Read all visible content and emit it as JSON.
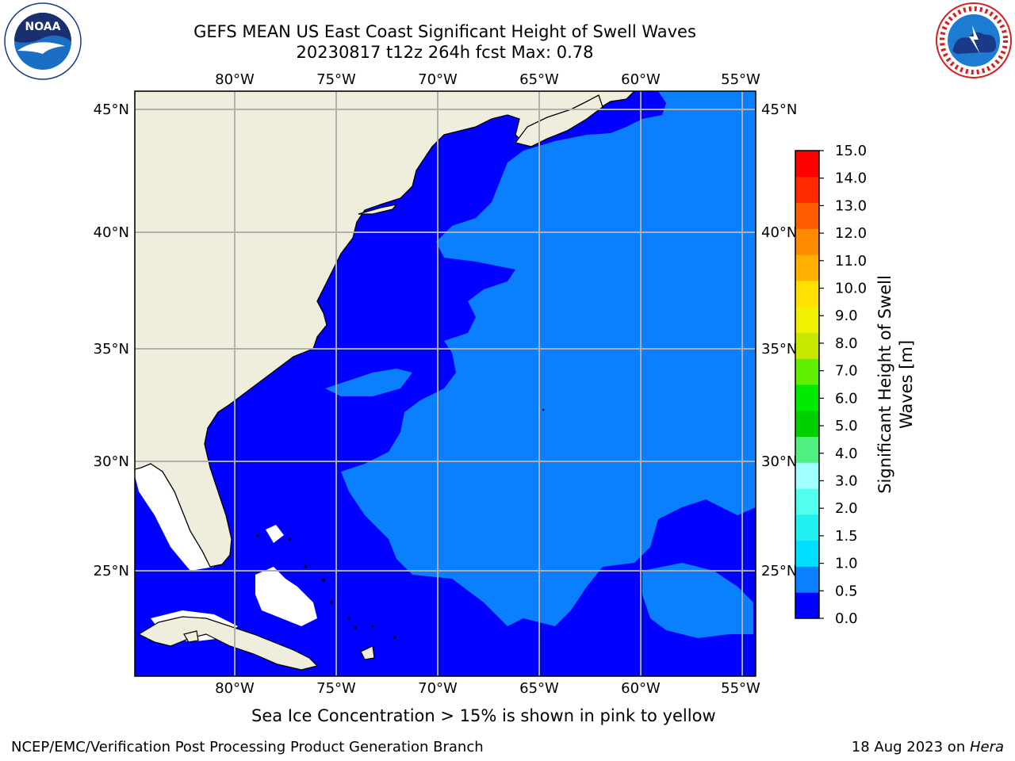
{
  "header": {
    "title_line1": "GEFS MEAN US East Coast Significant Height of Swell Waves",
    "title_line2": "20230817 t12z 264h fcst   Max: 0.78"
  },
  "logos": {
    "left": {
      "name": "noaa-logo",
      "text": "NOAA",
      "ring_text": "NATIONAL OCEANIC AND ATMOSPHERIC ADMINISTRATION · U.S. DEPARTMENT OF COMMERCE"
    },
    "right": {
      "name": "nws-logo",
      "ring_text": "NATIONAL WEATHER SERVICE"
    }
  },
  "map": {
    "region": "US East Coast",
    "lon_ticks": [
      "80°W",
      "75°W",
      "70°W",
      "65°W",
      "60°W",
      "55°W"
    ],
    "lat_ticks": [
      "45°N",
      "40°N",
      "35°N",
      "30°N",
      "25°N"
    ],
    "grid": true,
    "colors": {
      "land": "#efeedd",
      "ocean_low": "#0000ff",
      "ocean_mid": "#0a80ff",
      "missing": "#ffffff",
      "grid": "#b0b0b0"
    }
  },
  "colorbar": {
    "label_line1": "Significant Height of Swell",
    "label_line2": "Waves [m]",
    "ticks": [
      "0.0",
      "0.5",
      "1.0",
      "1.5",
      "2.0",
      "3.0",
      "4.0",
      "5.0",
      "6.0",
      "7.0",
      "8.0",
      "9.0",
      "10.0",
      "11.0",
      "12.0",
      "13.0",
      "14.0",
      "15.0"
    ],
    "colors": [
      "#0000ff",
      "#0a80ff",
      "#00dfff",
      "#20f0f0",
      "#50ffee",
      "#a0ffff",
      "#50f080",
      "#00d000",
      "#00ea00",
      "#60ee00",
      "#c8e800",
      "#f0f000",
      "#ffe000",
      "#ffb000",
      "#ff8c00",
      "#ff5c00",
      "#ff2a00",
      "#ff0000"
    ]
  },
  "caption": "Sea Ice Concentration > 15% is shown in pink to yellow",
  "footer": {
    "left": "NCEP/EMC/Verification Post Processing Product Generation Branch",
    "right_date": "18 Aug 2023 on ",
    "right_host": "Hera"
  }
}
